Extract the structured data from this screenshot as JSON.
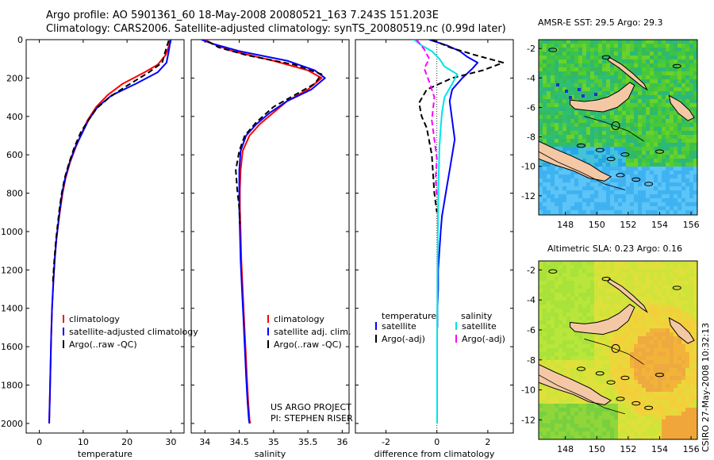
{
  "header": {
    "line1": "Argo profile: AO 5901361_60 18-May-2008 20080521_163 7.243S 151.203E",
    "line2": "Climatology: CARS2006. Satellite-adjusted climatology: synTS_20080519.nc (0.99d later)"
  },
  "credit": "CSIRO 27-May-2008 10:32:13",
  "colors": {
    "climatology": "#ff0000",
    "satellite": "#0000ff",
    "argo": "#000000",
    "salinity_satellite": "#00e5e5",
    "salinity_argo": "#ff00ff",
    "land": "#f5c8a5"
  },
  "chart_data": [
    {
      "type": "line",
      "id": "temperature",
      "xlabel": "temperature",
      "xlim": [
        -3,
        33
      ],
      "ylim": [
        2050,
        0
      ],
      "xticks": [
        0,
        10,
        20,
        30
      ],
      "yticks": [
        0,
        200,
        400,
        600,
        800,
        1000,
        1200,
        1400,
        1600,
        1800,
        2000
      ],
      "legend": [
        "climatology",
        "satellite-adjusted climatology",
        "Argo(..raw -QC)"
      ],
      "legend_position": "lower-right",
      "series": [
        {
          "name": "climatology",
          "color": "#ff0000",
          "style": "solid",
          "x": [
            29.8,
            29.6,
            28.8,
            27,
            24,
            19,
            15.5,
            13,
            11,
            9.6,
            8.3,
            7,
            6,
            5.3,
            4.8,
            4.3,
            3.9,
            3.5,
            3.2,
            2.9,
            2.7,
            2.55,
            2.4,
            2.3,
            2.25
          ],
          "y": [
            0,
            30,
            80,
            130,
            170,
            230,
            290,
            350,
            420,
            490,
            560,
            640,
            720,
            800,
            880,
            960,
            1040,
            1150,
            1260,
            1400,
            1550,
            1700,
            1850,
            1950,
            2000
          ]
        },
        {
          "name": "satellite-adjusted climatology",
          "color": "#0000ff",
          "style": "solid",
          "x": [
            30,
            29.8,
            29.5,
            29,
            27,
            22,
            16.5,
            13.3,
            11.2,
            9.7,
            8.2,
            6.9,
            5.9,
            5.2,
            4.7,
            4.3,
            3.9,
            3.5,
            3.2,
            2.9,
            2.7,
            2.55,
            2.4,
            2.3,
            2.25
          ],
          "y": [
            0,
            20,
            60,
            120,
            170,
            230,
            290,
            350,
            420,
            490,
            560,
            640,
            720,
            800,
            880,
            960,
            1040,
            1150,
            1260,
            1400,
            1550,
            1700,
            1850,
            1950,
            2000
          ]
        },
        {
          "name": "Argo(..raw -QC)",
          "color": "#000000",
          "style": "dashed",
          "x": [
            29.5,
            29,
            28,
            25,
            20,
            16,
            13,
            11.2,
            9.5,
            8,
            6.8,
            5.8,
            5.1,
            4.6,
            4.2,
            3.8,
            3.4,
            3.1
          ],
          "y": [
            5,
            40,
            120,
            170,
            240,
            300,
            360,
            420,
            480,
            560,
            640,
            720,
            800,
            880,
            960,
            1040,
            1150,
            1260
          ]
        }
      ]
    },
    {
      "type": "line",
      "id": "salinity",
      "xlabel": "salinity",
      "xlim": [
        33.8,
        36.1
      ],
      "ylim": [
        2050,
        0
      ],
      "xticks": [
        34,
        34.5,
        35,
        35.5,
        36
      ],
      "legend": [
        "climatology",
        "satellite adj. clim.",
        "Argo(..raw -QC)"
      ],
      "legend_position": "lower-right",
      "annotations": [
        "US ARGO PROJECT",
        "PI: STEPHEN RISER"
      ],
      "series": [
        {
          "name": "climatology",
          "color": "#ff0000",
          "style": "solid",
          "x": [
            34.0,
            34.1,
            34.4,
            35.0,
            35.5,
            35.7,
            35.5,
            35.2,
            35.0,
            34.8,
            34.65,
            34.55,
            34.52,
            34.51,
            34.51,
            34.52,
            34.53,
            34.55,
            34.57,
            34.59,
            34.61,
            34.63,
            34.65,
            34.66
          ],
          "y": [
            0,
            20,
            60,
            110,
            160,
            200,
            260,
            320,
            380,
            440,
            500,
            580,
            680,
            780,
            880,
            1000,
            1150,
            1300,
            1450,
            1600,
            1750,
            1880,
            1980,
            2000
          ]
        },
        {
          "name": "satellite adj. clim.",
          "color": "#0000ff",
          "style": "solid",
          "x": [
            33.95,
            34.1,
            34.5,
            35.2,
            35.6,
            35.75,
            35.55,
            35.2,
            34.95,
            34.75,
            34.6,
            34.52,
            34.5,
            34.5,
            34.5,
            34.51,
            34.52,
            34.54,
            34.56,
            34.58,
            34.6,
            34.62,
            34.64,
            34.65
          ],
          "y": [
            0,
            20,
            60,
            110,
            160,
            200,
            260,
            320,
            380,
            440,
            500,
            580,
            680,
            780,
            880,
            1000,
            1150,
            1300,
            1450,
            1600,
            1750,
            1880,
            1980,
            2000
          ]
        },
        {
          "name": "Argo(..raw -QC)",
          "color": "#000000",
          "style": "dashed",
          "x": [
            34.05,
            34.2,
            34.6,
            35.3,
            35.7,
            35.6,
            35.3,
            35.0,
            34.75,
            34.58,
            34.5,
            34.45,
            34.47,
            34.5,
            34.51
          ],
          "y": [
            10,
            40,
            80,
            130,
            180,
            230,
            290,
            350,
            430,
            500,
            580,
            680,
            780,
            880,
            960
          ]
        }
      ]
    },
    {
      "type": "line",
      "id": "difference",
      "xlabel": "difference from climatology",
      "xlim": [
        -3.2,
        3.0
      ],
      "ylim": [
        2050,
        0
      ],
      "xticks": [
        -2,
        0,
        2
      ],
      "legend_headers": [
        "temperature",
        "salinity"
      ],
      "legend": [
        "satellite",
        "Argo(-adj)",
        "satellite",
        "Argo(-adj)"
      ],
      "legend_position": "lower-center",
      "series": [
        {
          "name": "satellite",
          "group": "temperature",
          "color": "#0000ff",
          "style": "solid",
          "x": [
            -0.3,
            0.4,
            0.9,
            1.2,
            1.6,
            1.4,
            1.0,
            0.6,
            0.5,
            0.6,
            0.7,
            0.6,
            0.5,
            0.4,
            0.3,
            0.2,
            0.15,
            0.1,
            0.05,
            0.05,
            0.02,
            0.02
          ],
          "y": [
            0,
            30,
            60,
            90,
            120,
            150,
            200,
            260,
            320,
            420,
            520,
            600,
            680,
            760,
            840,
            920,
            1000,
            1100,
            1200,
            1300,
            1400,
            1500
          ]
        },
        {
          "name": "Argo(-adj)",
          "group": "temperature",
          "color": "#000000",
          "style": "dashed",
          "x": [
            -0.2,
            0.5,
            1.5,
            2.6,
            1.8,
            0.6,
            -0.4,
            -0.7,
            -0.6,
            -0.4,
            -0.3,
            -0.2,
            -0.15,
            -0.1,
            0
          ],
          "y": [
            0,
            40,
            80,
            120,
            160,
            200,
            260,
            330,
            400,
            460,
            530,
            600,
            700,
            800,
            900
          ]
        },
        {
          "name": "satellite",
          "group": "salinity",
          "color": "#00e5e5",
          "style": "solid",
          "x": [
            -0.9,
            -0.6,
            -0.2,
            0.1,
            0.3,
            0.8,
            0.6,
            0.3,
            0.2,
            0.15,
            0.1,
            0.08,
            0.06,
            0.05,
            0.04,
            0.03,
            0.02,
            0.02,
            0.01,
            0.01,
            0.01,
            0.01
          ],
          "y": [
            0,
            30,
            60,
            100,
            140,
            180,
            230,
            300,
            380,
            460,
            560,
            660,
            760,
            860,
            960,
            1100,
            1250,
            1400,
            1550,
            1700,
            1850,
            2000
          ]
        },
        {
          "name": "Argo(-adj)",
          "group": "salinity",
          "color": "#ff00ff",
          "style": "dashed",
          "x": [
            -0.8,
            -0.5,
            -0.3,
            -0.5,
            -0.3,
            -0.1,
            -0.2,
            -0.1,
            0,
            -0.05,
            0
          ],
          "y": [
            0,
            50,
            100,
            150,
            220,
            300,
            420,
            520,
            620,
            720,
            820
          ]
        }
      ]
    },
    {
      "type": "heatmap",
      "id": "sst_map",
      "title": "AMSR-E SST: 29.5 Argo: 29.3",
      "xlim": [
        146.3,
        156.4
      ],
      "ylim": [
        -13.3,
        -1.4
      ],
      "xticks": [
        148,
        150,
        152,
        154,
        156
      ],
      "yticks": [
        -2,
        -4,
        -6,
        -8,
        -10,
        -12
      ],
      "marker": {
        "lon": 151.2,
        "lat": -7.24
      }
    },
    {
      "type": "heatmap",
      "id": "sla_map",
      "title": "Altimetric SLA: 0.23 Argo: 0.16",
      "xlim": [
        146.3,
        156.4
      ],
      "ylim": [
        -13.3,
        -1.4
      ],
      "xticks": [
        148,
        150,
        152,
        154,
        156
      ],
      "yticks": [
        -2,
        -4,
        -6,
        -8,
        -10,
        -12
      ],
      "marker": {
        "lon": 151.2,
        "lat": -7.24
      }
    }
  ]
}
